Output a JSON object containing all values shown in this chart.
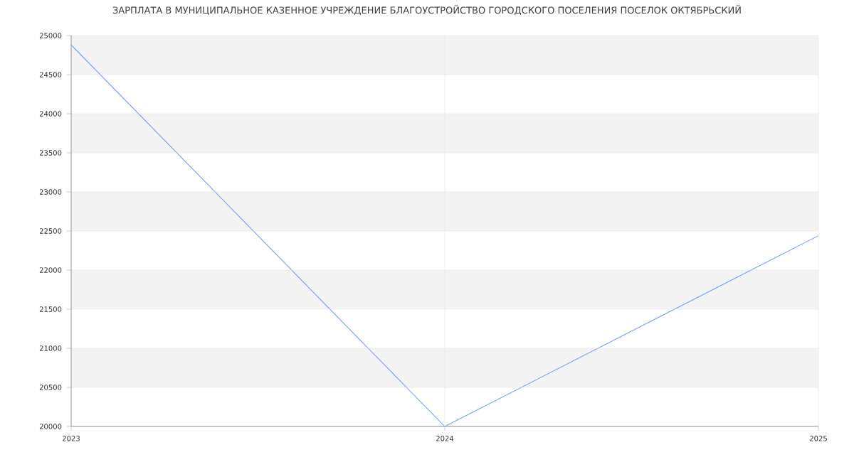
{
  "chart_data": {
    "type": "line",
    "title": "ЗАРПЛАТА В МУНИЦИПАЛЬНОЕ КАЗЕННОЕ УЧРЕЖДЕНИЕ БЛАГОУСТРОЙСТВО ГОРОДСКОГО ПОСЕЛЕНИЯ ПОСЕЛОК ОКТЯБРЬСКИЙ",
    "x": [
      2023,
      2024,
      2025
    ],
    "series": [
      {
        "color": "#6b9bf5",
        "values": [
          24880,
          20000,
          22440
        ]
      }
    ],
    "xlim": [
      2023,
      2025
    ],
    "xticks": [
      2023,
      2024,
      2025
    ],
    "ylim": [
      20000,
      25000
    ],
    "yticks": [
      20000,
      20500,
      21000,
      21500,
      22000,
      22500,
      23000,
      23500,
      24000,
      24500,
      25000
    ],
    "grid": true,
    "marker": "none",
    "line_style": "solid",
    "bands": [
      {
        "axis": "y",
        "from": 20500,
        "to": 21000,
        "color": "#f3f3f3"
      },
      {
        "axis": "y",
        "from": 21500,
        "to": 22000,
        "color": "#f3f3f3"
      },
      {
        "axis": "y",
        "from": 22500,
        "to": 23000,
        "color": "#f3f3f3"
      },
      {
        "axis": "y",
        "from": 23500,
        "to": 24000,
        "color": "#f3f3f3"
      },
      {
        "axis": "y",
        "from": 24500,
        "to": 25000,
        "color": "#f3f3f3"
      }
    ]
  }
}
